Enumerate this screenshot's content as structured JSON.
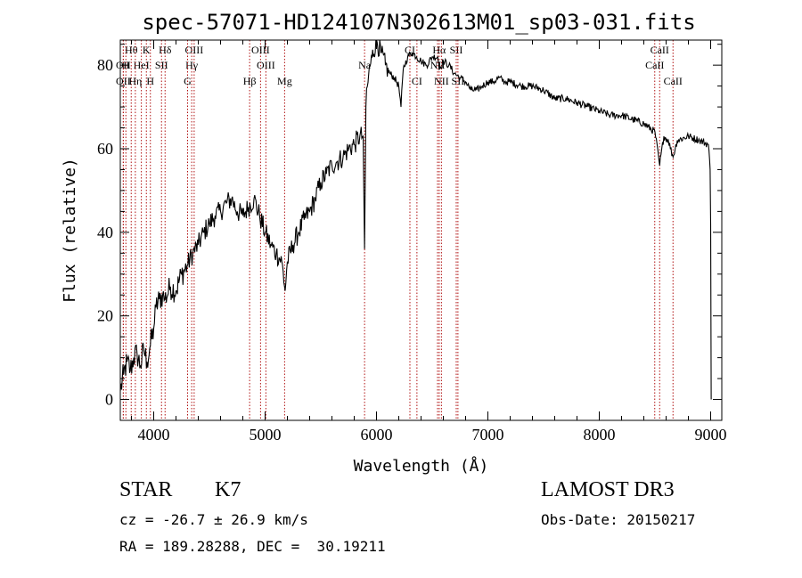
{
  "chart_data": {
    "type": "line",
    "title": "spec-57071-HD124107N302613M01_sp03-031.fits",
    "xlabel": "Wavelength (Å)",
    "ylabel": "Flux (relative)",
    "xlim": [
      3700,
      9100
    ],
    "ylim": [
      -5,
      86
    ],
    "x_ticks": [
      4000,
      5000,
      6000,
      7000,
      8000,
      9000
    ],
    "y_ticks": [
      0,
      20,
      40,
      60,
      80
    ],
    "series": [
      {
        "name": "spectrum",
        "points": [
          [
            3700,
            2
          ],
          [
            3730,
            6
          ],
          [
            3760,
            9
          ],
          [
            3790,
            7
          ],
          [
            3820,
            10
          ],
          [
            3850,
            11
          ],
          [
            3880,
            8
          ],
          [
            3910,
            12
          ],
          [
            3940,
            9
          ],
          [
            3970,
            13
          ],
          [
            4000,
            17
          ],
          [
            4020,
            22
          ],
          [
            4050,
            24
          ],
          [
            4080,
            25
          ],
          [
            4100,
            24
          ],
          [
            4150,
            27
          ],
          [
            4200,
            26
          ],
          [
            4250,
            30
          ],
          [
            4300,
            32
          ],
          [
            4350,
            35
          ],
          [
            4400,
            37
          ],
          [
            4450,
            40
          ],
          [
            4500,
            42
          ],
          [
            4550,
            44
          ],
          [
            4600,
            45
          ],
          [
            4650,
            47
          ],
          [
            4700,
            48
          ],
          [
            4750,
            45
          ],
          [
            4800,
            44
          ],
          [
            4850,
            46
          ],
          [
            4900,
            48
          ],
          [
            4950,
            44
          ],
          [
            5000,
            40
          ],
          [
            5050,
            37
          ],
          [
            5100,
            35
          ],
          [
            5150,
            33
          ],
          [
            5180,
            26
          ],
          [
            5200,
            33
          ],
          [
            5250,
            37
          ],
          [
            5300,
            40
          ],
          [
            5350,
            43
          ],
          [
            5400,
            45
          ],
          [
            5450,
            48
          ],
          [
            5500,
            52
          ],
          [
            5550,
            54
          ],
          [
            5600,
            56
          ],
          [
            5650,
            57
          ],
          [
            5700,
            58
          ],
          [
            5750,
            60
          ],
          [
            5800,
            61
          ],
          [
            5850,
            63
          ],
          [
            5880,
            63
          ],
          [
            5893,
            36
          ],
          [
            5905,
            70
          ],
          [
            5930,
            78
          ],
          [
            5960,
            82
          ],
          [
            6000,
            86
          ],
          [
            6040,
            83
          ],
          [
            6080,
            80
          ],
          [
            6120,
            78
          ],
          [
            6160,
            77
          ],
          [
            6200,
            75
          ],
          [
            6220,
            70
          ],
          [
            6240,
            79
          ],
          [
            6280,
            82
          ],
          [
            6320,
            83
          ],
          [
            6360,
            82
          ],
          [
            6400,
            81
          ],
          [
            6450,
            80
          ],
          [
            6500,
            82
          ],
          [
            6550,
            82
          ],
          [
            6563,
            79
          ],
          [
            6600,
            81
          ],
          [
            6650,
            80
          ],
          [
            6700,
            78
          ],
          [
            6750,
            77
          ],
          [
            6800,
            76
          ],
          [
            6850,
            74
          ],
          [
            6900,
            74
          ],
          [
            6950,
            75
          ],
          [
            7000,
            76
          ],
          [
            7050,
            76
          ],
          [
            7100,
            77
          ],
          [
            7150,
            76
          ],
          [
            7200,
            76
          ],
          [
            7300,
            75
          ],
          [
            7400,
            75
          ],
          [
            7500,
            74
          ],
          [
            7600,
            72
          ],
          [
            7700,
            72
          ],
          [
            7800,
            71
          ],
          [
            7900,
            70
          ],
          [
            8000,
            69
          ],
          [
            8100,
            68
          ],
          [
            8200,
            68
          ],
          [
            8300,
            67
          ],
          [
            8400,
            66
          ],
          [
            8500,
            64
          ],
          [
            8542,
            56
          ],
          [
            8580,
            63
          ],
          [
            8620,
            62
          ],
          [
            8662,
            58
          ],
          [
            8700,
            62
          ],
          [
            8800,
            63
          ],
          [
            8900,
            62
          ],
          [
            8980,
            61
          ],
          [
            8995,
            55
          ],
          [
            9000,
            42
          ],
          [
            9005,
            0
          ]
        ]
      }
    ],
    "spectral_lines": [
      {
        "label": "Hθ",
        "wavelength": 3798,
        "row": 0
      },
      {
        "label": "K",
        "wavelength": 3934,
        "row": 0
      },
      {
        "label": "Hδ",
        "wavelength": 4102,
        "row": 0
      },
      {
        "label": "OIII",
        "wavelength": 4363,
        "row": 0
      },
      {
        "label": "OIII",
        "wavelength": 4959,
        "row": 0
      },
      {
        "label": "CI",
        "wavelength": 6300,
        "row": 0
      },
      {
        "label": "Hα",
        "wavelength": 6563,
        "row": 0
      },
      {
        "label": "SII",
        "wavelength": 6716,
        "row": 0
      },
      {
        "label": "CaII",
        "wavelength": 8542,
        "row": 0
      },
      {
        "label": "OII",
        "wavelength": 3727,
        "row": 1
      },
      {
        "label": "H",
        "wavelength": 3750,
        "row": 1
      },
      {
        "label": "HeI",
        "wavelength": 3889,
        "row": 1
      },
      {
        "label": "SII",
        "wavelength": 4070,
        "row": 1
      },
      {
        "label": "Hγ",
        "wavelength": 4341,
        "row": 1
      },
      {
        "label": "OIII",
        "wavelength": 5007,
        "row": 1
      },
      {
        "label": "Na",
        "wavelength": 5893,
        "row": 1
      },
      {
        "label": "Hβ",
        "wavelength": 4861,
        "row": 2
      },
      {
        "label": "OII",
        "wavelength": 3727,
        "row": 2
      },
      {
        "label": "Hη",
        "wavelength": 3835,
        "row": 2
      },
      {
        "label": "H",
        "wavelength": 3970,
        "row": 2
      },
      {
        "label": "G",
        "wavelength": 4304,
        "row": 2
      },
      {
        "label": "Mg",
        "wavelength": 5175,
        "row": 2
      },
      {
        "label": "CI",
        "wavelength": 6363,
        "row": 2
      },
      {
        "label": "NII",
        "wavelength": 6583,
        "row": 2
      },
      {
        "label": "SII",
        "wavelength": 6731,
        "row": 2
      },
      {
        "label": "NII",
        "wavelength": 6548,
        "row": 1
      },
      {
        "label": "CaII",
        "wavelength": 8498,
        "row": 1
      },
      {
        "label": "CaII",
        "wavelength": 8662,
        "row": 2
      }
    ]
  },
  "info": {
    "object_class": "STAR",
    "subclass": "K7",
    "survey": "LAMOST DR3",
    "velocity": "cz = -26.7 ± 26.9 km/s",
    "obs_date": "Obs-Date: 20150217",
    "coords": "RA = 189.28288, DEC =  30.19211"
  }
}
